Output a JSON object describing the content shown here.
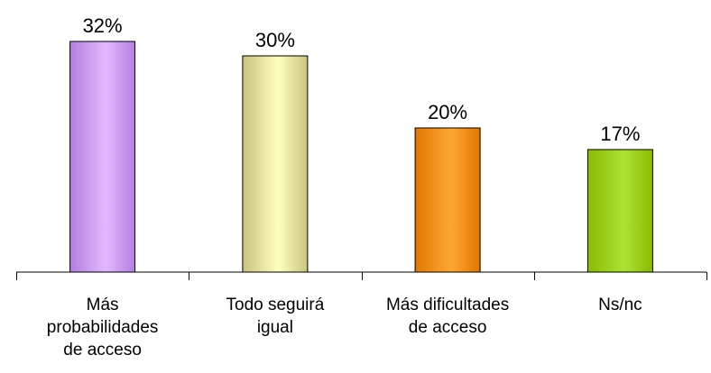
{
  "chart_data": {
    "type": "bar",
    "categories": [
      [
        "Más",
        "probabilidades",
        "de acceso"
      ],
      [
        "Todo seguirá",
        "igual"
      ],
      [
        "Más dificultades",
        "de acceso"
      ],
      [
        "Ns/nc"
      ]
    ],
    "values": [
      32,
      30,
      20,
      17
    ],
    "data_labels": [
      "32%",
      "30%",
      "20%",
      "17%"
    ],
    "ylim": [
      0,
      32
    ],
    "grid": false,
    "legend": "none",
    "bar_colors": [
      {
        "light": "#e3b8ff",
        "dark": "#b27fe0"
      },
      {
        "light": "#ffffbc",
        "dark": "#c9c480"
      },
      {
        "light": "#ffa733",
        "dark": "#e07800"
      },
      {
        "light": "#aee233",
        "dark": "#88bb00"
      }
    ],
    "axis_color": "#000000"
  }
}
